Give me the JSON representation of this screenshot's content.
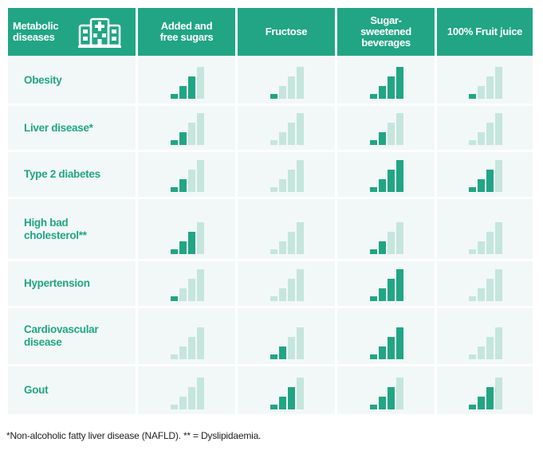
{
  "chart_data": {
    "type": "table",
    "title": "",
    "corner_label_line1": "Metabolic",
    "corner_label_line2": "diseases",
    "corner_icon": "hospital-icon",
    "columns": [
      {
        "line1": "Added and",
        "line2": "free sugars",
        "line3": ""
      },
      {
        "line1": "Fructose",
        "line2": "",
        "line3": ""
      },
      {
        "line1": "Sugar-",
        "line2": "sweetened",
        "line3": "beverages"
      },
      {
        "line1": "100% Fruit juice",
        "line2": "",
        "line3": ""
      }
    ],
    "rows": [
      {
        "line1": "Obesity",
        "line2": "",
        "levels": [
          3,
          1,
          4,
          1
        ]
      },
      {
        "line1": "Liver disease*",
        "line2": "",
        "levels": [
          2,
          0,
          2,
          0
        ]
      },
      {
        "line1": "Type 2 diabetes",
        "line2": "",
        "levels": [
          2,
          0,
          4,
          3
        ]
      },
      {
        "line1": "High bad",
        "line2": "cholesterol**",
        "levels": [
          3,
          0,
          2,
          0
        ]
      },
      {
        "line1": "Hypertension",
        "line2": "",
        "levels": [
          1,
          0,
          4,
          0
        ]
      },
      {
        "line1": "Cardiovascular",
        "line2": "disease",
        "levels": [
          0,
          2,
          4,
          0
        ]
      },
      {
        "line1": "Gout",
        "line2": "",
        "levels": [
          0,
          3,
          3,
          3
        ]
      }
    ],
    "max_level": 4,
    "bar_icon": "signal-bars-icon",
    "colors": {
      "header": "#21a585",
      "active_bar": "#21a585",
      "inactive_bar": "#c5e6dc",
      "cell_bg": "#f2f8f7",
      "label": "#21a585"
    }
  },
  "footer": "*Non-alcoholic fatty liver disease (NAFLD). ** = Dyslipidaemia."
}
